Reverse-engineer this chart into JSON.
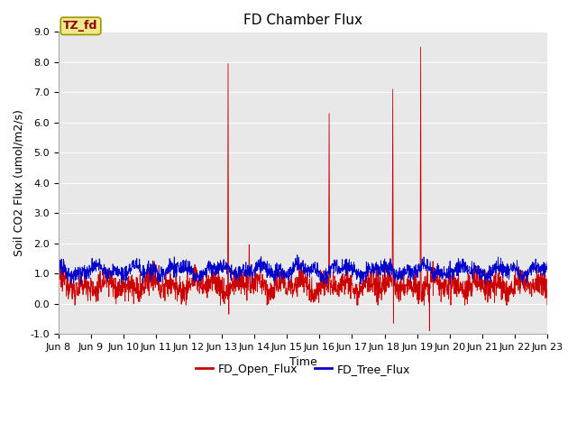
{
  "title": "FD Chamber Flux",
  "ylabel": "Soil CO2 Flux (umol/m2/s)",
  "xlabel": "Time",
  "ylim": [
    -1.0,
    9.0
  ],
  "yticks": [
    -1.0,
    0.0,
    1.0,
    2.0,
    3.0,
    4.0,
    5.0,
    6.0,
    7.0,
    8.0,
    9.0
  ],
  "n_points": 2000,
  "plot_bg_color": "#e8e8e8",
  "fig_bg_color": "#ffffff",
  "red_color": "#cc0000",
  "blue_color": "#0000cc",
  "label_box_color": "#f0e68c",
  "label_box_edge_color": "#999900",
  "label_box_text_color": "#8b0000",
  "label_box_text": "TZ_fd",
  "legend_label_red": "FD_Open_Flux",
  "legend_label_blue": "FD_Tree_Flux",
  "title_fontsize": 11,
  "axis_label_fontsize": 9,
  "tick_fontsize": 8,
  "legend_fontsize": 9,
  "xtick_labels": [
    "Jun 8",
    "Jun 9",
    "Jun 10",
    "Jun 11",
    "Jun 12",
    "Jun 13",
    "Jun 14",
    "Jun 15",
    "Jun 16",
    "Jun 17",
    "Jun 18",
    "Jun 19",
    "Jun 20",
    "Jun 21",
    "Jun 22",
    "Jun 23"
  ],
  "grid_color": "#ffffff",
  "grid_linewidth": 0.7,
  "red_base_mean": 0.6,
  "red_base_std": 0.22,
  "blue_base_mean": 1.1,
  "blue_base_std": 0.13,
  "spike_positions_days": [
    5.2,
    5.85,
    8.3,
    10.25,
    11.1,
    11.35
  ],
  "spike_peaks": [
    7.95,
    1.95,
    6.3,
    7.1,
    8.5,
    0.05
  ],
  "spike_troughs": [
    -0.35,
    0.0,
    0.0,
    -0.65,
    2.6,
    -0.9
  ]
}
